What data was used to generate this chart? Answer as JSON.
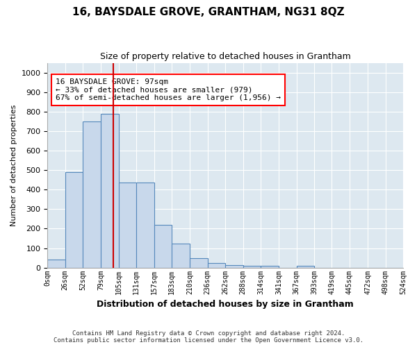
{
  "title": "16, BAYSDALE GROVE, GRANTHAM, NG31 8QZ",
  "subtitle": "Size of property relative to detached houses in Grantham",
  "xlabel": "Distribution of detached houses by size in Grantham",
  "ylabel": "Number of detached properties",
  "bar_color": "#c8d8eb",
  "bar_edge_color": "#5588bb",
  "background_color": "#dde8f0",
  "annotation_text": "16 BAYSDALE GROVE: 97sqm\n← 33% of detached houses are smaller (979)\n67% of semi-detached houses are larger (1,956) →",
  "vline_x": 97,
  "vline_color": "#cc0000",
  "bin_edges": [
    0,
    26,
    52,
    79,
    105,
    131,
    157,
    183,
    210,
    236,
    262,
    288,
    314,
    341,
    367,
    393,
    419,
    445,
    472,
    498,
    524
  ],
  "bin_labels": [
    "0sqm",
    "26sqm",
    "52sqm",
    "79sqm",
    "105sqm",
    "131sqm",
    "157sqm",
    "183sqm",
    "210sqm",
    "236sqm",
    "262sqm",
    "288sqm",
    "314sqm",
    "341sqm",
    "367sqm",
    "393sqm",
    "419sqm",
    "445sqm",
    "472sqm",
    "498sqm",
    "524sqm"
  ],
  "bar_heights": [
    40,
    490,
    750,
    790,
    435,
    435,
    220,
    125,
    50,
    25,
    12,
    10,
    8,
    0,
    8,
    0,
    0,
    0,
    0,
    0
  ],
  "ylim": [
    0,
    1050
  ],
  "yticks": [
    0,
    100,
    200,
    300,
    400,
    500,
    600,
    700,
    800,
    900,
    1000
  ],
  "footnote": "Contains HM Land Registry data © Crown copyright and database right 2024.\nContains public sector information licensed under the Open Government Licence v3.0."
}
